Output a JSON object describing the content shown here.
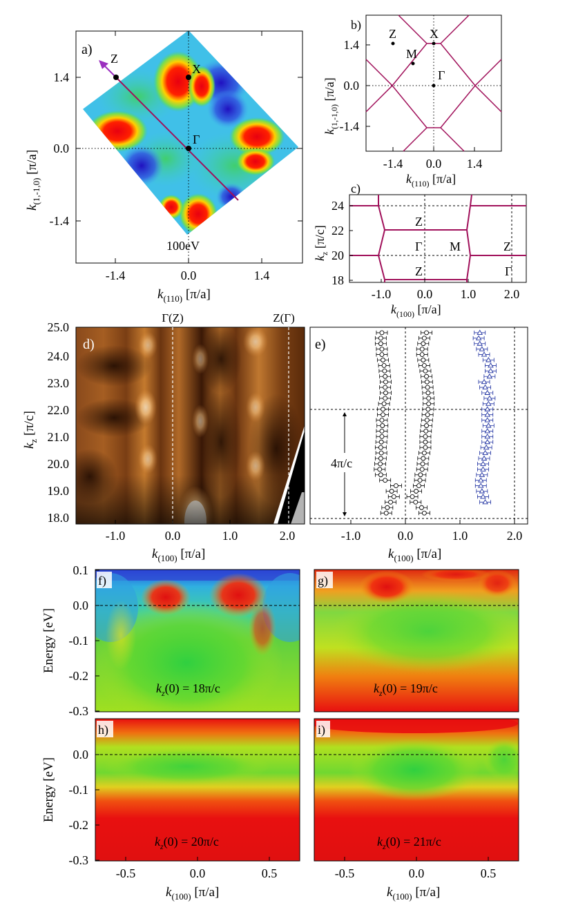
{
  "colors": {
    "magenta": "#a0105a",
    "purple_arrow": "#9b2fbf",
    "blue_err": "#1c2fa0"
  },
  "chart_data": [
    {
      "panel": "a",
      "type": "heatmap",
      "label": "a)",
      "xlabel_k": "k",
      "xlabel_sub": "(110)",
      "xlabel_unit": " [π/a]",
      "ylabel_k": "k",
      "ylabel_sub": "(1,-1,0)",
      "ylabel_unit": " [π/a]",
      "xticks": [
        -1.4,
        0.0,
        1.4
      ],
      "xtick_labels": [
        "-1.4",
        "0.0",
        "1.4"
      ],
      "yticks": [
        -1.4,
        0.0,
        1.4
      ],
      "ytick_labels": [
        "-1.4",
        "0.0",
        "1.4"
      ],
      "xlim": [
        -2.2,
        2.2
      ],
      "ylim": [
        -2.25,
        2.15
      ],
      "energy_label": "100eV",
      "points": [
        {
          "name": "Z",
          "x": -1.4,
          "y": 1.4
        },
        {
          "name": "X",
          "x": 0.0,
          "y": 1.4
        },
        {
          "name": "Γ",
          "x": 0.0,
          "y": 0.0
        }
      ],
      "cut_line": {
        "x": [
          -1.45,
          1.0
        ],
        "y": [
          1.45,
          -1.0
        ]
      }
    },
    {
      "panel": "b",
      "type": "line",
      "label": "b)",
      "xlabel_k": "k",
      "xlabel_sub": "(110)",
      "xlabel_unit": " [π/a]",
      "ylabel_k": "k",
      "ylabel_sub": "(1,-1,0)",
      "ylabel_unit": " [π/a]",
      "xticks": [
        -1.4,
        0.0,
        1.4
      ],
      "xtick_labels": [
        "-1.4",
        "0.0",
        "1.4"
      ],
      "yticks": [
        -1.4,
        0.0,
        1.4
      ],
      "ytick_labels": [
        "-1.4",
        "0.0",
        "1.4"
      ],
      "xlim": [
        -2.2,
        2.2
      ],
      "ylim": [
        -2.2,
        2.2
      ],
      "points": [
        {
          "name": "Z",
          "x": -1.4,
          "y": 1.4
        },
        {
          "name": "X",
          "x": 0.0,
          "y": 1.4
        },
        {
          "name": "M",
          "x": -0.7,
          "y": 0.7
        },
        {
          "name": "Γ",
          "x": 0.0,
          "y": 0.0
        }
      ]
    },
    {
      "panel": "c",
      "type": "line",
      "label": "c)",
      "xlabel_k": "k",
      "xlabel_sub": "(100)",
      "xlabel_unit": " [π/a]",
      "ylabel_k": "k",
      "ylabel_sub": "z",
      "ylabel_unit": " [π/c]",
      "xticks": [
        -1.0,
        0.0,
        1.0,
        2.0
      ],
      "xtick_labels": [
        "-1.0",
        "0.0",
        "1.0",
        "2.0"
      ],
      "yticks": [
        18,
        20,
        22,
        24
      ],
      "ytick_labels": [
        "18",
        "20",
        "22",
        "24"
      ],
      "xlim": [
        -1.7,
        2.3
      ],
      "ylim": [
        17.5,
        25.0
      ],
      "labels": [
        {
          "text": "Z",
          "x": -0.1,
          "y": 23.0
        },
        {
          "text": "Γ",
          "x": -0.1,
          "y": 20.8
        },
        {
          "text": "M",
          "x": 0.8,
          "y": 20.8
        },
        {
          "text": "Z",
          "x": 1.9,
          "y": 20.8
        },
        {
          "text": "Z",
          "x": -0.1,
          "y": 18.8
        },
        {
          "text": "Γ",
          "x": 1.9,
          "y": 18.8
        }
      ]
    },
    {
      "panel": "d",
      "type": "heatmap",
      "label": "d)",
      "xlabel_k": "k",
      "xlabel_sub": "(100)",
      "xlabel_unit": " [π/a]",
      "ylabel_k": "k",
      "ylabel_sub": "z",
      "ylabel_unit": " [π/c]",
      "xticks": [
        -1.0,
        0.0,
        1.0,
        2.0
      ],
      "xtick_labels": [
        "-1.0",
        "0.0",
        "1.0",
        "2.0"
      ],
      "yticks": [
        18,
        19,
        20,
        21,
        22,
        23,
        24,
        25
      ],
      "ytick_labels": [
        "18.0",
        "19.0",
        "20.0",
        "21.0",
        "22.0",
        "23.0",
        "24.0",
        "25.0"
      ],
      "xlim": [
        -1.7,
        2.3
      ],
      "ylim": [
        17.8,
        25.0
      ],
      "top_labels": [
        {
          "text": "Γ(Z)",
          "x": 0.0
        },
        {
          "text": "Z(Γ)",
          "x": 2.0
        }
      ]
    },
    {
      "panel": "e",
      "type": "scatter",
      "label": "e)",
      "xlabel_k": "k",
      "xlabel_sub": "(100)",
      "xlabel_unit": " [π/a]",
      "xticks": [
        -1.0,
        0.0,
        1.0,
        2.0
      ],
      "xtick_labels": [
        "-1.0",
        "0.0",
        "1.0",
        "2.0"
      ],
      "xlim": [
        -1.7,
        2.3
      ],
      "ylim": [
        17.8,
        25.0
      ],
      "annotation": "4π/c",
      "arrow_range": [
        18.0,
        22.0
      ],
      "series": [
        {
          "name": "left",
          "marker": "circle",
          "y": [
            18.2,
            18.4,
            18.6,
            18.8,
            19.0,
            19.2,
            19.4,
            19.6,
            19.8,
            20.0,
            20.2,
            20.4,
            20.6,
            20.8,
            21.0,
            21.2,
            21.4,
            21.6,
            21.8,
            22.0,
            22.2,
            22.4,
            22.6,
            22.8,
            23.0,
            23.2,
            23.4,
            23.6,
            23.8,
            24.0,
            24.2,
            24.4,
            24.6,
            24.8
          ],
          "x": [
            -0.3,
            -0.28,
            -0.22,
            -0.16,
            -0.2,
            -0.12,
            -0.32,
            -0.4,
            -0.42,
            -0.41,
            -0.4,
            -0.39,
            -0.4,
            -0.39,
            -0.38,
            -0.38,
            -0.37,
            -0.38,
            -0.36,
            -0.36,
            -0.34,
            -0.32,
            -0.31,
            -0.32,
            -0.31,
            -0.32,
            -0.33,
            -0.34,
            -0.36,
            -0.38,
            -0.38,
            -0.4,
            -0.4,
            -0.38
          ]
        },
        {
          "name": "middle",
          "marker": "circle",
          "y": [
            18.2,
            18.4,
            18.6,
            18.8,
            19.0,
            19.2,
            19.4,
            19.6,
            19.8,
            20.0,
            20.2,
            20.4,
            20.6,
            20.8,
            21.0,
            21.2,
            21.4,
            21.6,
            21.8,
            22.0,
            22.2,
            22.4,
            22.6,
            22.8,
            23.0,
            23.2,
            23.4,
            23.6,
            23.8,
            24.0,
            24.2,
            24.4,
            24.6,
            24.8
          ],
          "x": [
            0.4,
            0.35,
            0.24,
            0.18,
            0.25,
            0.3,
            0.32,
            0.33,
            0.36,
            0.37,
            0.38,
            0.4,
            0.42,
            0.42,
            0.42,
            0.43,
            0.44,
            0.45,
            0.46,
            0.47,
            0.48,
            0.48,
            0.47,
            0.46,
            0.45,
            0.44,
            0.42,
            0.4,
            0.38,
            0.36,
            0.36,
            0.38,
            0.4,
            0.44
          ]
        },
        {
          "name": "right",
          "marker": "triangle",
          "y": [
            18.6,
            18.8,
            19.0,
            19.2,
            19.4,
            19.6,
            19.8,
            20.0,
            20.2,
            20.4,
            20.6,
            20.8,
            21.0,
            21.2,
            21.4,
            21.6,
            21.8,
            22.0,
            22.2,
            22.4,
            22.6,
            22.8,
            23.0,
            23.2,
            23.4,
            23.6,
            23.8,
            24.0,
            24.2,
            24.4,
            24.6,
            24.8
          ],
          "x": [
            1.52,
            1.48,
            1.46,
            1.44,
            1.44,
            1.46,
            1.48,
            1.48,
            1.5,
            1.52,
            1.54,
            1.56,
            1.56,
            1.56,
            1.58,
            1.56,
            1.56,
            1.56,
            1.58,
            1.6,
            1.56,
            1.52,
            1.5,
            1.6,
            1.62,
            1.62,
            1.58,
            1.5,
            1.46,
            1.42,
            1.4,
            1.42
          ]
        }
      ]
    },
    {
      "panel": "f",
      "type": "heatmap",
      "label": "f)",
      "ylabel": "Energy [eV]",
      "xlim": [
        -0.7,
        0.7
      ],
      "ylim": [
        -0.3,
        0.1
      ],
      "yticks": [
        0.1,
        0.0,
        -0.1,
        -0.2,
        -0.3
      ],
      "ytick_labels": [
        "0.1",
        "0.0",
        "-0.1",
        "-0.2",
        "-0.3"
      ],
      "annotation_k": "k",
      "annotation_sub": "z",
      "annotation_rest": "(0) = 18π/c"
    },
    {
      "panel": "g",
      "type": "heatmap",
      "label": "g)",
      "xlim": [
        -0.7,
        0.7
      ],
      "ylim": [
        -0.3,
        0.1
      ],
      "annotation_k": "k",
      "annotation_sub": "z",
      "annotation_rest": "(0) = 19π/c"
    },
    {
      "panel": "h",
      "type": "heatmap",
      "label": "h)",
      "ylabel": "Energy [eV]",
      "xlim": [
        -0.7,
        0.7
      ],
      "ylim": [
        -0.3,
        0.1
      ],
      "yticks": [
        0.0,
        -0.1,
        -0.2,
        -0.3
      ],
      "ytick_labels": [
        "0.0",
        "-0.1",
        "-0.2",
        "-0.3"
      ],
      "xticks": [
        -0.5,
        0.0,
        0.5
      ],
      "xtick_labels": [
        "-0.5",
        "0.0",
        "0.5"
      ],
      "xlabel_k": "k",
      "xlabel_sub": "(100)",
      "xlabel_unit": " [π/a]",
      "annotation_k": "k",
      "annotation_sub": "z",
      "annotation_rest": "(0) = 20π/c"
    },
    {
      "panel": "i",
      "type": "heatmap",
      "label": "i)",
      "xlim": [
        -0.7,
        0.7
      ],
      "ylim": [
        -0.3,
        0.1
      ],
      "xticks": [
        -0.5,
        0.0,
        0.5
      ],
      "xtick_labels": [
        "-0.5",
        "0.0",
        "0.5"
      ],
      "xlabel_k": "k",
      "xlabel_sub": "(100)",
      "xlabel_unit": " [π/a]",
      "annotation_k": "k",
      "annotation_sub": "z",
      "annotation_rest": "(0) = 21π/c"
    }
  ]
}
